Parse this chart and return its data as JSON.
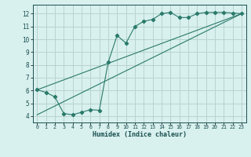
{
  "xlabel": "Humidex (Indice chaleur)",
  "bg_color": "#d8f0ee",
  "grid_color": "#b8d4d0",
  "line_color": "#2a7a6a",
  "xlim": [
    -0.5,
    23.5
  ],
  "ylim": [
    3.5,
    12.7
  ],
  "xticks": [
    0,
    1,
    2,
    3,
    4,
    5,
    6,
    7,
    8,
    9,
    10,
    11,
    12,
    13,
    14,
    15,
    16,
    17,
    18,
    19,
    20,
    21,
    22,
    23
  ],
  "yticks": [
    4,
    5,
    6,
    7,
    8,
    9,
    10,
    11,
    12
  ],
  "line1_x": [
    0,
    1,
    2,
    3,
    4,
    5,
    6,
    7,
    8,
    9,
    10,
    11,
    12,
    13,
    14,
    15,
    16,
    17,
    18,
    19,
    20,
    21,
    22,
    23
  ],
  "line1_y": [
    6.05,
    5.85,
    5.5,
    4.2,
    4.1,
    4.3,
    4.5,
    4.45,
    8.2,
    10.3,
    9.7,
    11.0,
    11.4,
    11.55,
    12.0,
    12.1,
    11.7,
    11.7,
    12.0,
    12.1,
    12.1,
    12.1,
    12.05,
    12.0
  ],
  "line2_x": [
    0,
    23
  ],
  "line2_y": [
    6.05,
    12.0
  ],
  "line3_x": [
    0,
    23
  ],
  "line3_y": [
    4.1,
    12.0
  ]
}
